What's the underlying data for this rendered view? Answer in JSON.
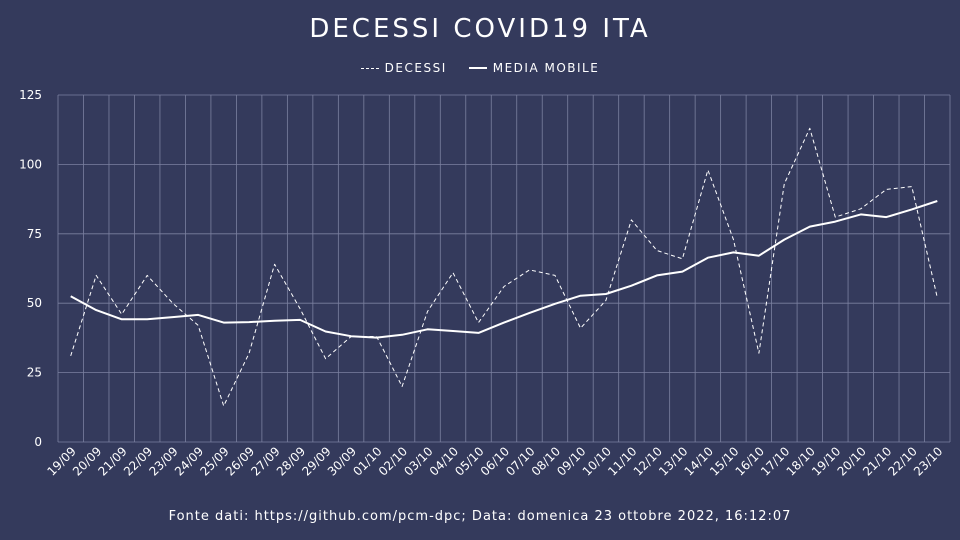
{
  "chart_data": {
    "type": "line",
    "title": "DECESSI COVID19 ITA",
    "xlabel": "",
    "ylabel": "",
    "ylim": [
      0,
      125
    ],
    "yticks": [
      0,
      25,
      50,
      75,
      100,
      125
    ],
    "grid": true,
    "legend": "top-center",
    "categories": [
      "19/09",
      "20/09",
      "21/09",
      "22/09",
      "23/09",
      "24/09",
      "25/09",
      "26/09",
      "27/09",
      "28/09",
      "29/09",
      "30/09",
      "01/10",
      "02/10",
      "03/10",
      "04/10",
      "05/10",
      "06/10",
      "07/10",
      "08/10",
      "09/10",
      "10/10",
      "11/10",
      "12/10",
      "13/10",
      "14/10",
      "15/10",
      "16/10",
      "17/10",
      "18/10",
      "19/10",
      "20/10",
      "21/10",
      "22/10",
      "23/10"
    ],
    "series": [
      {
        "name": "DECESSI",
        "style": "dashed",
        "values": [
          31,
          60,
          46,
          60,
          50,
          42,
          13,
          32,
          64,
          48,
          30,
          38,
          38,
          20,
          47,
          61,
          43,
          56,
          62,
          60,
          41,
          51,
          80,
          69,
          66,
          98,
          73,
          32,
          93,
          113,
          81,
          84,
          91,
          92,
          52
        ]
      },
      {
        "name": "MEDIA MOBILE",
        "style": "solid",
        "values": [
          52.5,
          47.5,
          44.2,
          44.2,
          45,
          45.8,
          43,
          43.2,
          43.7,
          44,
          39.8,
          38.1,
          37.6,
          38.6,
          40.6,
          40,
          39.3,
          43,
          46.5,
          49.8,
          52.7,
          53.3,
          56.3,
          60,
          61.4,
          66.4,
          68.3,
          67.1,
          72.9,
          77.6,
          79.4,
          82,
          81,
          83.8,
          86.8
        ]
      }
    ],
    "colors": {
      "background": "#343a5c",
      "grid": "#7b80a0",
      "line": "#ffffff"
    }
  },
  "source_text": "Fonte dati: https://github.com/pcm-dpc; Data: domenica 23 ottobre 2022, 16:12:07"
}
